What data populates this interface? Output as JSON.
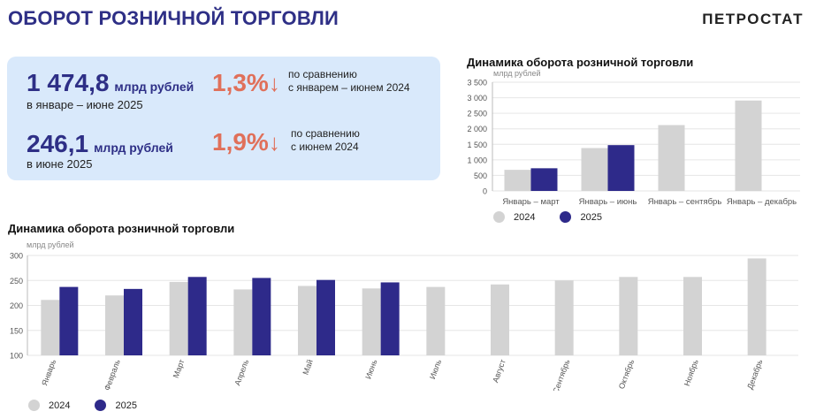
{
  "header": {
    "title": "ОБОРОТ РОЗНИЧНОЙ ТОРГОВЛИ",
    "brand": "ПЕТРОСТАТ"
  },
  "summary": {
    "row1": {
      "value": "1 474,8",
      "unit": "млрд рублей",
      "period": "в январе – июне 2025",
      "change": "1,3%",
      "compare": [
        "по сравнению",
        "с январем – июнем 2024"
      ]
    },
    "row2": {
      "value": "246,1",
      "unit": "млрд рублей",
      "period": "в июне 2025",
      "change": "1,9%",
      "compare": [
        "по сравнению",
        "с июнем 2024"
      ]
    },
    "arrow": "↓"
  },
  "colors": {
    "series2024": "#d3d3d3",
    "series2025": "#2e2a8a",
    "accent": "#e0705a",
    "box": "#d9e9fb"
  },
  "chart_data": [
    {
      "type": "bar",
      "title": "Динамика оборота розничной торговли",
      "ylabel": "млрд рублей",
      "categories": [
        "Январь – март",
        "Январь – июнь",
        "Январь – сентябрь",
        "Январь – декабрь"
      ],
      "series": [
        {
          "name": "2024",
          "values": [
            680,
            1380,
            2120,
            2910
          ]
        },
        {
          "name": "2025",
          "values": [
            730,
            1474.8,
            null,
            null
          ]
        }
      ],
      "ylim": [
        0,
        3500
      ],
      "yticks": [
        "0",
        "500",
        "1 000",
        "1 500",
        "2 000",
        "2 500",
        "3 000",
        "3 500"
      ],
      "grid": true,
      "legend": "bottom"
    },
    {
      "type": "bar",
      "title": "Динамика оборота розничной торговли",
      "ylabel": "млрд рублей",
      "categories": [
        "Январь",
        "Февраль",
        "Март",
        "Апрель",
        "Май",
        "Июнь",
        "Июль",
        "Август",
        "Сентябрь",
        "Октябрь",
        "Ноябрь",
        "Декабрь"
      ],
      "series": [
        {
          "name": "2024",
          "values": [
            211,
            220,
            247,
            232,
            239,
            234,
            237,
            242,
            250,
            257,
            257,
            294
          ]
        },
        {
          "name": "2025",
          "values": [
            237,
            233,
            257,
            255,
            251,
            246.1,
            null,
            null,
            null,
            null,
            null,
            null
          ]
        }
      ],
      "ylim": [
        100,
        300
      ],
      "yticks": [
        "100",
        "150",
        "200",
        "250",
        "300"
      ],
      "grid": true,
      "legend": "bottom-left"
    }
  ]
}
